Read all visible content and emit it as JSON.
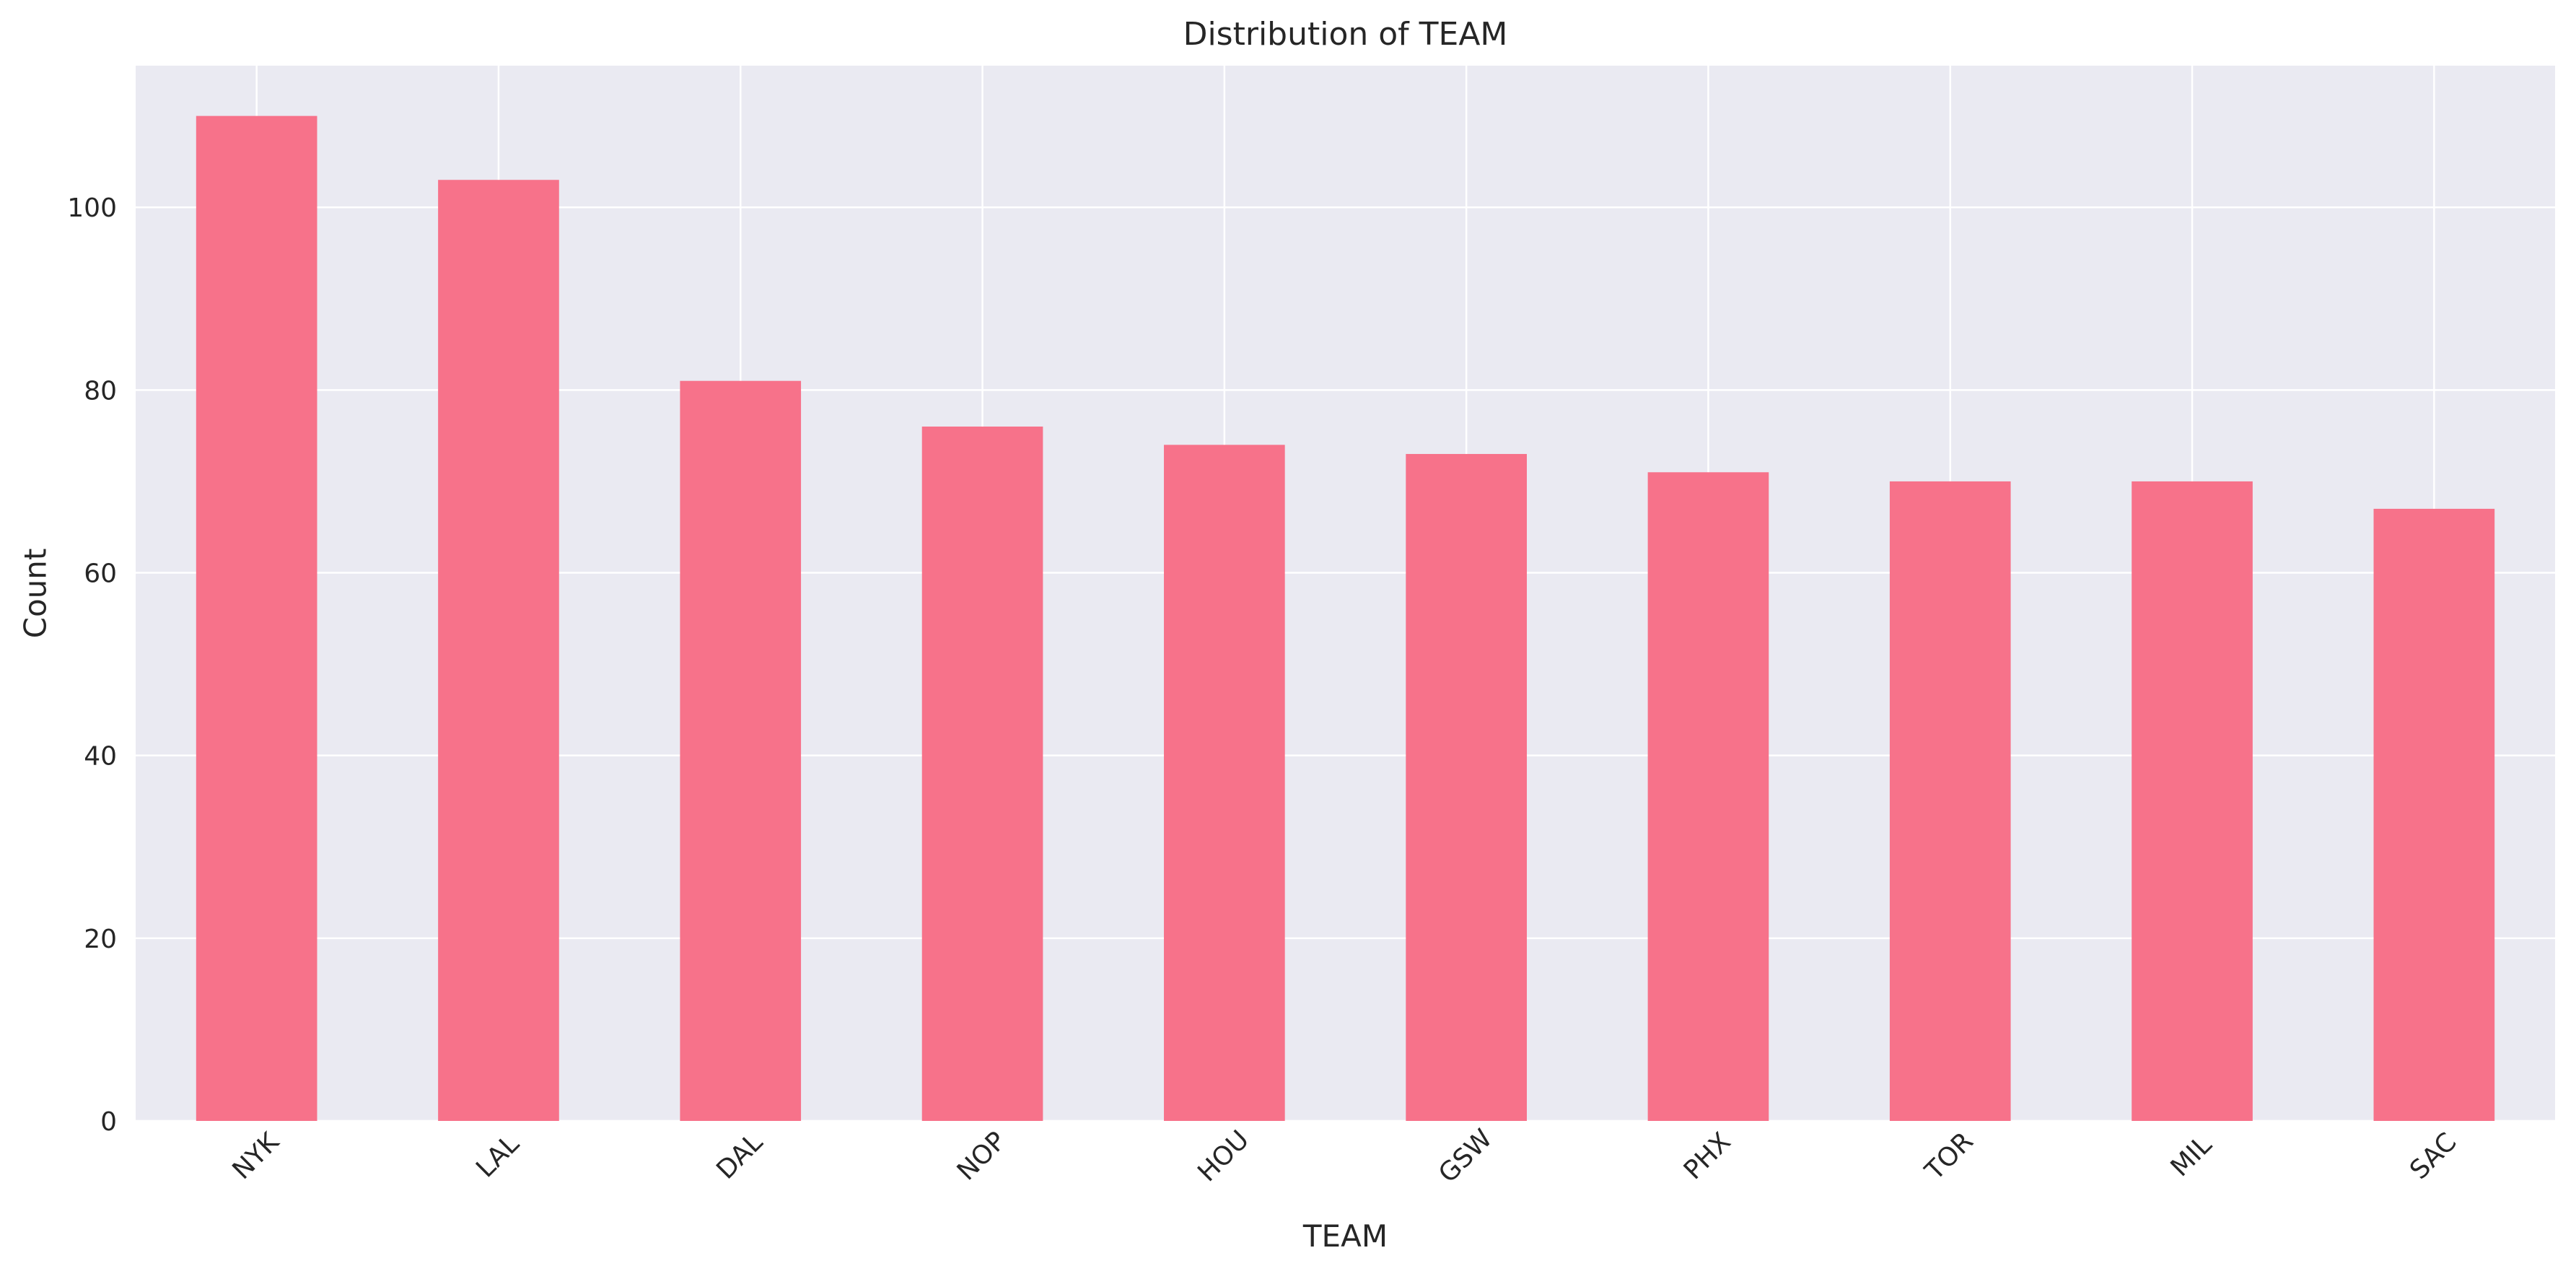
{
  "chart_data": {
    "type": "bar",
    "title": "Distribution of TEAM",
    "xlabel": "TEAM",
    "ylabel": "Count",
    "categories": [
      "NYK",
      "LAL",
      "DAL",
      "NOP",
      "HOU",
      "GSW",
      "PHX",
      "TOR",
      "MIL",
      "SAC"
    ],
    "values": [
      110,
      103,
      81,
      76,
      74,
      73,
      71,
      70,
      70,
      67
    ],
    "ylim": [
      0,
      115.5
    ],
    "yticks": [
      0,
      20,
      40,
      60,
      80,
      100
    ],
    "grid": true,
    "legend": "none",
    "colors": {
      "bar": "#f7728a",
      "plot_background": "#eaeaf2",
      "grid": "#ffffff",
      "text": "#262626"
    }
  }
}
